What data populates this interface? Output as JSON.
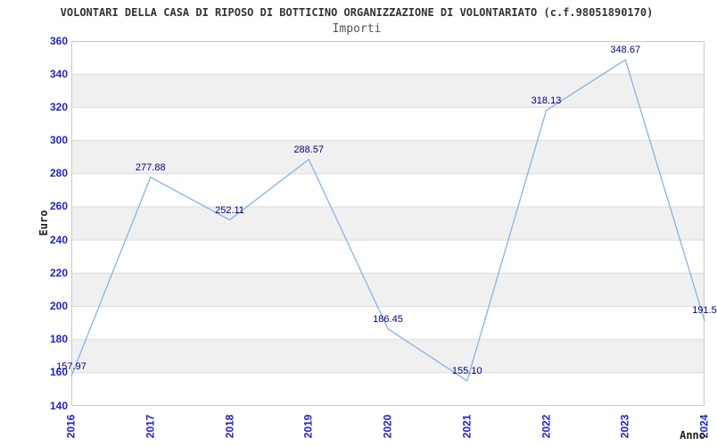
{
  "header": {
    "title": "VOLONTARI DELLA CASA DI RIPOSO DI BOTTICINO ORGANIZZAZIONE DI VOLONTARIATO (c.f.98051890170)",
    "subtitle": "Importi"
  },
  "chart_data": {
    "type": "line",
    "title": "Importi",
    "xlabel": "Anno",
    "ylabel": "Euro",
    "categories": [
      "2016",
      "2017",
      "2018",
      "2019",
      "2020",
      "2021",
      "2022",
      "2023",
      "2024"
    ],
    "series": [
      {
        "name": "Importi",
        "values": [
          157.97,
          277.88,
          252.11,
          288.57,
          186.45,
          155.1,
          318.13,
          348.67,
          191.5
        ]
      }
    ],
    "point_labels": [
      "157.97",
      "277.88",
      "252.11",
      "288.57",
      "186.45",
      "155.10",
      "318.13",
      "348.67",
      "191.5"
    ],
    "ylim": [
      140,
      360
    ],
    "ytick_step": 20,
    "yticks": [
      "360",
      "340",
      "320",
      "300",
      "280",
      "260",
      "240",
      "220",
      "200",
      "180",
      "160",
      "140"
    ],
    "grid": "alternating-horizontal-bands",
    "legend": "none"
  },
  "style": {
    "line_color": "#87b3e5",
    "band_gray": "#f0f0f0",
    "band_white": "#ffffff",
    "gridline_color": "#dcdcdc",
    "border_color": "#c8c8c8",
    "tick_label_color": "#2222cc",
    "point_label_color": "#000080",
    "title_color": "#333333",
    "subtitle_color": "#555555",
    "axis_title_color": "#222222",
    "background": "#ffffff"
  }
}
